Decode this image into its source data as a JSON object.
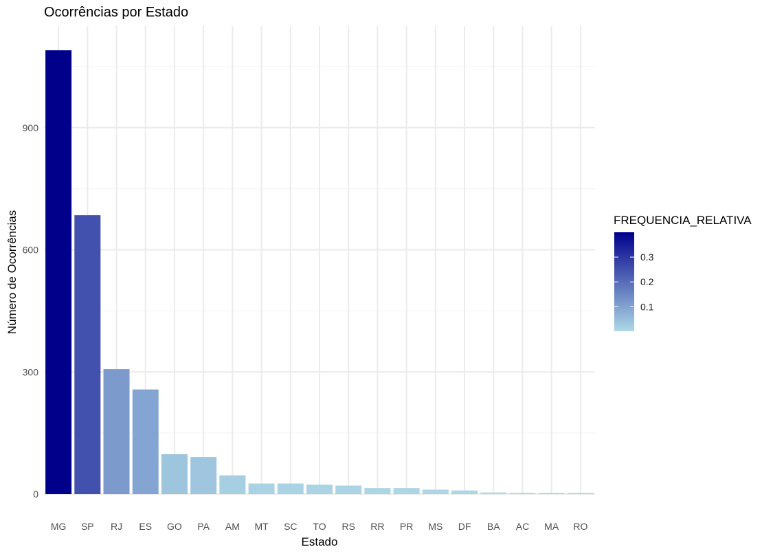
{
  "chart_data": {
    "type": "bar",
    "title": "Ocorrências por Estado",
    "xlabel": "Estado",
    "ylabel": "Número de Ocorrências",
    "categories": [
      "MG",
      "SP",
      "RJ",
      "ES",
      "GO",
      "PA",
      "AM",
      "MT",
      "SC",
      "TO",
      "RS",
      "RR",
      "PR",
      "MS",
      "DF",
      "BA",
      "AC",
      "MA",
      "RO"
    ],
    "values": [
      1090,
      685,
      307,
      257,
      98,
      91,
      46,
      26,
      26,
      23,
      21,
      15,
      15,
      11,
      9,
      4,
      3,
      3,
      3
    ],
    "frequencia_relativa": [
      0.4,
      0.25,
      0.113,
      0.095,
      0.036,
      0.034,
      0.017,
      0.0096,
      0.0096,
      0.0085,
      0.0078,
      0.0055,
      0.0055,
      0.0041,
      0.0033,
      0.0015,
      0.0011,
      0.0011,
      0.0011
    ],
    "ylim": [
      0,
      1100
    ],
    "y_ticks": [
      0,
      300,
      600,
      900
    ],
    "y_tick_labels": [
      "0",
      "300",
      "600",
      "900"
    ],
    "grid": true,
    "legend": {
      "title": "FREQUENCIA_RELATIVA",
      "placement": "right",
      "range": [
        0.0011,
        0.4
      ],
      "ticks": [
        0.1,
        0.2,
        0.3
      ],
      "tick_labels": [
        "0.1",
        "0.2",
        "0.3"
      ],
      "color_low": "#add8e6",
      "color_high": "#00008b"
    }
  }
}
